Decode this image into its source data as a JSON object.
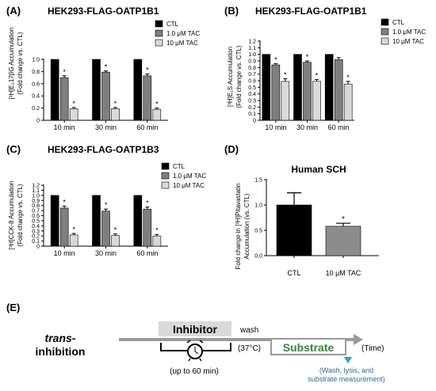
{
  "colors": {
    "ctl": "#000000",
    "tac_1": "#7f7f7f",
    "tac_10": "#d9d9d9",
    "human_tac": "#8c8c8c",
    "inhibitor_box": "#d9d9d9",
    "substrate_text": "#2e8b2e",
    "marker": "#1fa0d8",
    "caption_text": "#1f6fb0",
    "timeline": "#9a9a9a"
  },
  "chart_data": [
    {
      "type": "bar",
      "panel_label": "(A)",
      "title": "HEK293-FLAG-OATP1B1",
      "ylabel_lines": [
        "[³H]E₂17βG Accumulation",
        "(Fold change vs. CTL)"
      ],
      "yticks": [
        "0",
        "0.2",
        "0.4",
        "0.6",
        "0.8",
        "1.0"
      ],
      "ylim": [
        0,
        1.0
      ],
      "categories": [
        "10 min",
        "30 min",
        "60 min"
      ],
      "legend": [
        "CTL",
        "1.0 μM TAC",
        "10  μM TAC"
      ],
      "series": [
        {
          "name": "CTL",
          "values": [
            1.0,
            1.0,
            1.0
          ]
        },
        {
          "name": "1.0 μM TAC",
          "values": [
            0.7,
            0.79,
            0.73
          ]
        },
        {
          "name": "10  μM TAC",
          "values": [
            0.19,
            0.19,
            0.18
          ]
        }
      ],
      "errors": [
        [
          0,
          0,
          0
        ],
        [
          0.03,
          0.02,
          0.03
        ],
        [
          0.02,
          0.02,
          0.02
        ]
      ],
      "significance": [
        [
          "",
          "",
          ""
        ],
        [
          "*",
          "*",
          "*"
        ],
        [
          "*",
          "*",
          "*"
        ]
      ]
    },
    {
      "type": "bar",
      "panel_label": "(B)",
      "title": "HEK293-FLAG-OATP1B1",
      "ylabel_lines": [
        "[³H]E₁S Accumulation",
        "(Fold change vs. CTL)"
      ],
      "yticks": [
        "0",
        "0.1",
        "0.2",
        "0.3",
        "0.4",
        "0.5",
        "0.6",
        "0.7",
        "0.8",
        "0.9",
        "1.0",
        "1.1",
        "1.2"
      ],
      "ylim": [
        0,
        1.2
      ],
      "categories": [
        "10 min",
        "30 min",
        "60 min"
      ],
      "legend": [
        "CTL",
        "1.0 μM TAC",
        "10  μM TAC"
      ],
      "series": [
        {
          "name": "CTL",
          "values": [
            1.0,
            1.0,
            1.0
          ]
        },
        {
          "name": "1.0 μM TAC",
          "values": [
            0.84,
            0.88,
            0.92
          ]
        },
        {
          "name": "10  μM TAC",
          "values": [
            0.59,
            0.59,
            0.55
          ]
        }
      ],
      "errors": [
        [
          0,
          0,
          0
        ],
        [
          0.02,
          0.02,
          0.03
        ],
        [
          0.04,
          0.03,
          0.04
        ]
      ],
      "significance": [
        [
          "",
          "",
          ""
        ],
        [
          "*",
          "*",
          ""
        ],
        [
          "*",
          "*",
          "*"
        ]
      ]
    },
    {
      "type": "bar",
      "panel_label": "(C)",
      "title": "HEK293-FLAG-OATP1B3",
      "ylabel_lines": [
        "[³H]CCK-8 Accumulation",
        "(Fold change vs. CTL)"
      ],
      "yticks": [
        "0",
        "0.1",
        "0.2",
        "0.3",
        "0.4",
        "0.5",
        "0.6",
        "0.7",
        "0.8",
        "0.9",
        "1.0",
        "1.1",
        "1.2"
      ],
      "ylim": [
        0,
        1.2
      ],
      "categories": [
        "10 min",
        "30 min",
        "60 min"
      ],
      "legend": [
        "CTL",
        "1.0 μM TAC",
        "10  μM TAC"
      ],
      "series": [
        {
          "name": "CTL",
          "values": [
            1.0,
            1.0,
            1.0
          ]
        },
        {
          "name": "1.0 μM TAC",
          "values": [
            0.75,
            0.69,
            0.73
          ]
        },
        {
          "name": "10  μM TAC",
          "values": [
            0.22,
            0.21,
            0.2
          ]
        }
      ],
      "errors": [
        [
          0,
          0,
          0
        ],
        [
          0.04,
          0.04,
          0.04
        ],
        [
          0.03,
          0.03,
          0.03
        ]
      ],
      "significance": [
        [
          "",
          "",
          ""
        ],
        [
          "*",
          "*",
          "*"
        ],
        [
          "*",
          "*",
          "*"
        ]
      ]
    },
    {
      "type": "bar",
      "panel_label": "(D)",
      "title": "Human SCH",
      "ylabel_lines": [
        "Fold change in [³H]Pitavastatin",
        "Accumulation (vs. CTL)"
      ],
      "yticks": [
        "0.0",
        "0.5",
        "1.0",
        "1.5"
      ],
      "ylim": [
        0,
        1.5
      ],
      "categories": [
        "CTL",
        "10 μM TAC"
      ],
      "values": [
        1.0,
        0.58
      ],
      "errors": [
        0.24,
        0.06
      ],
      "significance": [
        "",
        "*"
      ]
    }
  ],
  "diagram": {
    "panel_label": "(E)",
    "label_line1": "trans-",
    "label_line2": "inhibition",
    "inhibitor": "Inhibitor",
    "wash": "wash",
    "duration": "(up to 60 min)",
    "temperature": "(37°C)",
    "substrate": "Substrate",
    "time_label": "(Time)",
    "caption_lines": [
      "(Wash, lysis, and",
      "substrate measurement)"
    ]
  }
}
